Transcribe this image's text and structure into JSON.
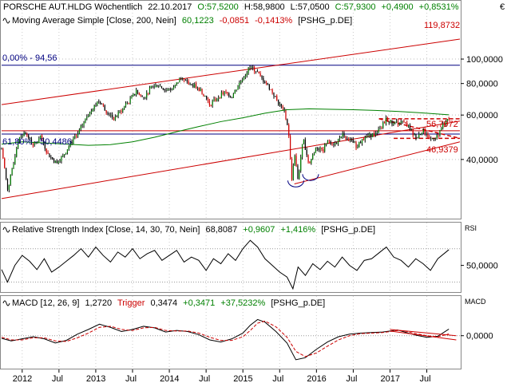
{
  "header": {
    "line1": {
      "name": "PORSCHE AUT.HLDG Wöchentlich",
      "date": "22.10.2017",
      "open": "O:57,5200",
      "high": "H:58,9800",
      "low": "L:57,0500",
      "close": "C:57,9300",
      "change": "+0,4900",
      "change_pct": "+0,8531%"
    },
    "line2": {
      "label": "Moving Average Simple [Close, 200, Nein]",
      "value": "60,1223",
      "change": "-0,0851",
      "change_pct": "-0,1413%",
      "symbol": "[PSHG_p.DE]"
    },
    "currency": "€"
  },
  "price_panel": {
    "annotations": {
      "fib_zero": "0,00% - 94,56",
      "fib_618": "61,80% - 50,4486",
      "upper_channel": "119,8732",
      "triangle_top": "56,7972",
      "triangle_bottom": "46,9379"
    }
  },
  "rsi_panel": {
    "title": "Relative Strength Index [Close, 14, 30, 70, Nein]",
    "value": "68,8087",
    "change": "+0,9607",
    "change_pct": "+1,416%",
    "symbol": "[PSHG_p.DE]",
    "axis_label": "RSI"
  },
  "macd_panel": {
    "title": "MACD [12, 26, 9]",
    "value": "1,2720",
    "trigger_label": "Trigger",
    "trigger_value": "0,3474",
    "change": "+0,3471",
    "change_pct": "+37,5232%",
    "symbol": "[PSHG_p.DE]",
    "axis_label": "MACD"
  },
  "x_axis": [
    "2012",
    "Jul",
    "2013",
    "Jul",
    "2014",
    "Jul",
    "2015",
    "Jul",
    "2016",
    "Jul",
    "2017",
    "Jul"
  ],
  "colors": {
    "price": "#000000",
    "up": "#008000",
    "down": "#cc0000",
    "ma": "#008000",
    "channel": "#cc0000",
    "fib": "#000080",
    "trigger": "#cc0000"
  },
  "chart_data": [
    {
      "type": "line",
      "y_scale": "log",
      "ylim": [
        24,
        130
      ],
      "yticks": [
        40,
        60,
        80,
        100
      ],
      "ytick_labels": [
        "40,0000",
        "60,0000",
        "80,0000",
        "100,0000"
      ],
      "x_range": [
        2011.72,
        2017.95
      ],
      "series": [
        {
          "x": [
            2011.72,
            2011.8,
            2011.88,
            2011.95,
            2012.05,
            2012.15,
            2012.25,
            2012.35,
            2012.45,
            2012.55,
            2012.65,
            2012.75,
            2012.85,
            2012.95,
            2013.05,
            2013.15,
            2013.25,
            2013.35,
            2013.45,
            2013.55,
            2013.65,
            2013.75,
            2013.85,
            2013.95,
            2014.05,
            2014.15,
            2014.25,
            2014.35,
            2014.45,
            2014.55,
            2014.65,
            2014.75,
            2014.85,
            2014.95,
            2015.02,
            2015.1,
            2015.18,
            2015.25,
            2015.32,
            2015.4,
            2015.48,
            2015.56,
            2015.62,
            2015.66,
            2015.7,
            2015.75,
            2015.82,
            2015.9,
            2016.0,
            2016.08,
            2016.15,
            2016.25,
            2016.35,
            2016.45,
            2016.55,
            2016.65,
            2016.75,
            2016.85,
            2016.95,
            2017.05,
            2017.15,
            2017.25,
            2017.35,
            2017.45,
            2017.55,
            2017.65,
            2017.72,
            2017.8
          ],
          "y": [
            44,
            30,
            38,
            49,
            51,
            45,
            49,
            42,
            39,
            41,
            46,
            50,
            57,
            64,
            68,
            62,
            58,
            63,
            68,
            74,
            70,
            77,
            79,
            75,
            76,
            84,
            80,
            78,
            74,
            66,
            70,
            74,
            71,
            80,
            86,
            93,
            90,
            84,
            80,
            74,
            67,
            62,
            52,
            32,
            42,
            33,
            48,
            38,
            45,
            43,
            48,
            46,
            50,
            48,
            45,
            49,
            50,
            52,
            58,
            55,
            57,
            54,
            49,
            52,
            48,
            50,
            55,
            58
          ]
        },
        {
          "name": "Moving Average Simple [Close, 200, Nein]",
          "x": [
            2011.72,
            2012.0,
            2012.3,
            2012.6,
            2012.9,
            2013.2,
            2013.5,
            2013.8,
            2014.1,
            2014.4,
            2014.7,
            2015.0,
            2015.3,
            2015.6,
            2015.9,
            2016.2,
            2016.5,
            2016.8,
            2017.1,
            2017.4,
            2017.8
          ],
          "y": [
            46,
            47,
            46.5,
            46,
            45.5,
            45.8,
            47,
            49,
            51.5,
            54,
            56.5,
            58.5,
            61,
            63,
            63.5,
            63.2,
            63,
            62.6,
            62,
            61.3,
            60.12
          ]
        }
      ],
      "lines": {
        "fib_0": 94.56,
        "fib_618": 50.4486,
        "channel_upper": {
          "from": [
            2011.72,
            66
          ],
          "to": [
            2017.95,
            120
          ]
        },
        "channel_lower": {
          "from": [
            2011.72,
            28
          ],
          "to": [
            2017.95,
            56.8
          ]
        },
        "support": {
          "from": [
            2015.7,
            32
          ],
          "to": [
            2017.95,
            47
          ]
        },
        "triangle_upper": {
          "from": [
            2016.85,
            58
          ],
          "to": [
            2017.95,
            58
          ]
        },
        "triangle_lower": {
          "from": [
            2017.05,
            48.5
          ],
          "to": [
            2017.95,
            48.5
          ]
        }
      }
    },
    {
      "type": "line",
      "name": "RSI",
      "ylim": [
        20,
        85
      ],
      "yticks": [
        50
      ],
      "ytick_labels": [
        "50,0000"
      ],
      "bands": [
        30,
        70
      ],
      "x_range": [
        2011.72,
        2017.95
      ],
      "series": [
        {
          "x": [
            2011.72,
            2011.8,
            2011.9,
            2012.0,
            2012.1,
            2012.2,
            2012.3,
            2012.4,
            2012.5,
            2012.6,
            2012.7,
            2012.8,
            2012.9,
            2013.0,
            2013.1,
            2013.2,
            2013.3,
            2013.4,
            2013.5,
            2013.6,
            2013.7,
            2013.8,
            2013.9,
            2014.0,
            2014.1,
            2014.2,
            2014.3,
            2014.4,
            2014.5,
            2014.6,
            2014.7,
            2014.8,
            2014.9,
            2015.0,
            2015.1,
            2015.2,
            2015.3,
            2015.4,
            2015.5,
            2015.6,
            2015.68,
            2015.75,
            2015.85,
            2015.95,
            2016.05,
            2016.15,
            2016.25,
            2016.35,
            2016.45,
            2016.55,
            2016.65,
            2016.75,
            2016.85,
            2016.95,
            2017.05,
            2017.15,
            2017.25,
            2017.35,
            2017.45,
            2017.55,
            2017.65,
            2017.8
          ],
          "y": [
            45,
            30,
            50,
            62,
            55,
            45,
            58,
            42,
            48,
            55,
            62,
            70,
            60,
            72,
            62,
            54,
            66,
            60,
            70,
            58,
            64,
            68,
            56,
            62,
            68,
            54,
            60,
            56,
            44,
            58,
            52,
            64,
            56,
            70,
            80,
            72,
            58,
            50,
            42,
            36,
            22,
            48,
            38,
            52,
            45,
            55,
            48,
            60,
            50,
            44,
            56,
            58,
            65,
            72,
            60,
            56,
            48,
            58,
            52,
            44,
            58,
            68.81
          ]
        }
      ]
    },
    {
      "type": "line",
      "name": "MACD",
      "ylim": [
        -6,
        5
      ],
      "yticks": [
        0
      ],
      "ytick_labels": [
        "0,0000"
      ],
      "x_range": [
        2011.72,
        2017.95
      ],
      "series": [
        {
          "name": "MACD",
          "x": [
            2011.72,
            2011.85,
            2012.0,
            2012.15,
            2012.3,
            2012.45,
            2012.6,
            2012.75,
            2012.9,
            2013.05,
            2013.2,
            2013.35,
            2013.5,
            2013.65,
            2013.8,
            2013.95,
            2014.1,
            2014.25,
            2014.4,
            2014.55,
            2014.7,
            2014.85,
            2015.0,
            2015.1,
            2015.2,
            2015.3,
            2015.45,
            2015.6,
            2015.72,
            2015.85,
            2016.0,
            2016.15,
            2016.3,
            2016.45,
            2016.6,
            2016.75,
            2016.9,
            2017.0,
            2017.1,
            2017.2,
            2017.35,
            2017.5,
            2017.65,
            2017.8
          ],
          "y": [
            -0.5,
            -1.0,
            -0.6,
            -0.2,
            -0.6,
            -1.4,
            -0.9,
            0.3,
            1.2,
            2.2,
            1.6,
            0.8,
            1.2,
            1.8,
            1.5,
            0.7,
            1.0,
            0.8,
            0.2,
            -0.8,
            -1.2,
            -0.6,
            0.5,
            2.0,
            3.1,
            2.6,
            0.8,
            -1.4,
            -4.6,
            -4.2,
            -2.6,
            -1.2,
            -0.2,
            0.3,
            0.5,
            0.6,
            0.7,
            0.9,
            1.1,
            0.7,
            0.1,
            -0.3,
            -0.1,
            1.27
          ]
        },
        {
          "name": "Trigger",
          "x": [
            2011.72,
            2011.85,
            2012.0,
            2012.15,
            2012.3,
            2012.45,
            2012.6,
            2012.75,
            2012.9,
            2013.05,
            2013.2,
            2013.35,
            2013.5,
            2013.65,
            2013.8,
            2013.95,
            2014.1,
            2014.25,
            2014.4,
            2014.55,
            2014.7,
            2014.85,
            2015.0,
            2015.1,
            2015.2,
            2015.3,
            2015.45,
            2015.6,
            2015.72,
            2015.85,
            2016.0,
            2016.15,
            2016.3,
            2016.45,
            2016.6,
            2016.75,
            2016.9,
            2017.0,
            2017.1,
            2017.2,
            2017.35,
            2017.5,
            2017.65,
            2017.8
          ],
          "y": [
            -0.3,
            -0.8,
            -0.8,
            -0.4,
            -0.4,
            -1.0,
            -1.1,
            -0.4,
            0.5,
            1.6,
            1.8,
            1.2,
            1.0,
            1.5,
            1.6,
            1.0,
            0.9,
            0.9,
            0.5,
            -0.3,
            -0.9,
            -0.9,
            -0.2,
            1.0,
            2.4,
            2.8,
            1.7,
            -0.3,
            -3.0,
            -4.0,
            -3.3,
            -2.0,
            -0.8,
            0.0,
            0.4,
            0.5,
            0.6,
            0.8,
            1.0,
            0.9,
            0.4,
            0.0,
            -0.2,
            0.35
          ]
        }
      ]
    }
  ]
}
